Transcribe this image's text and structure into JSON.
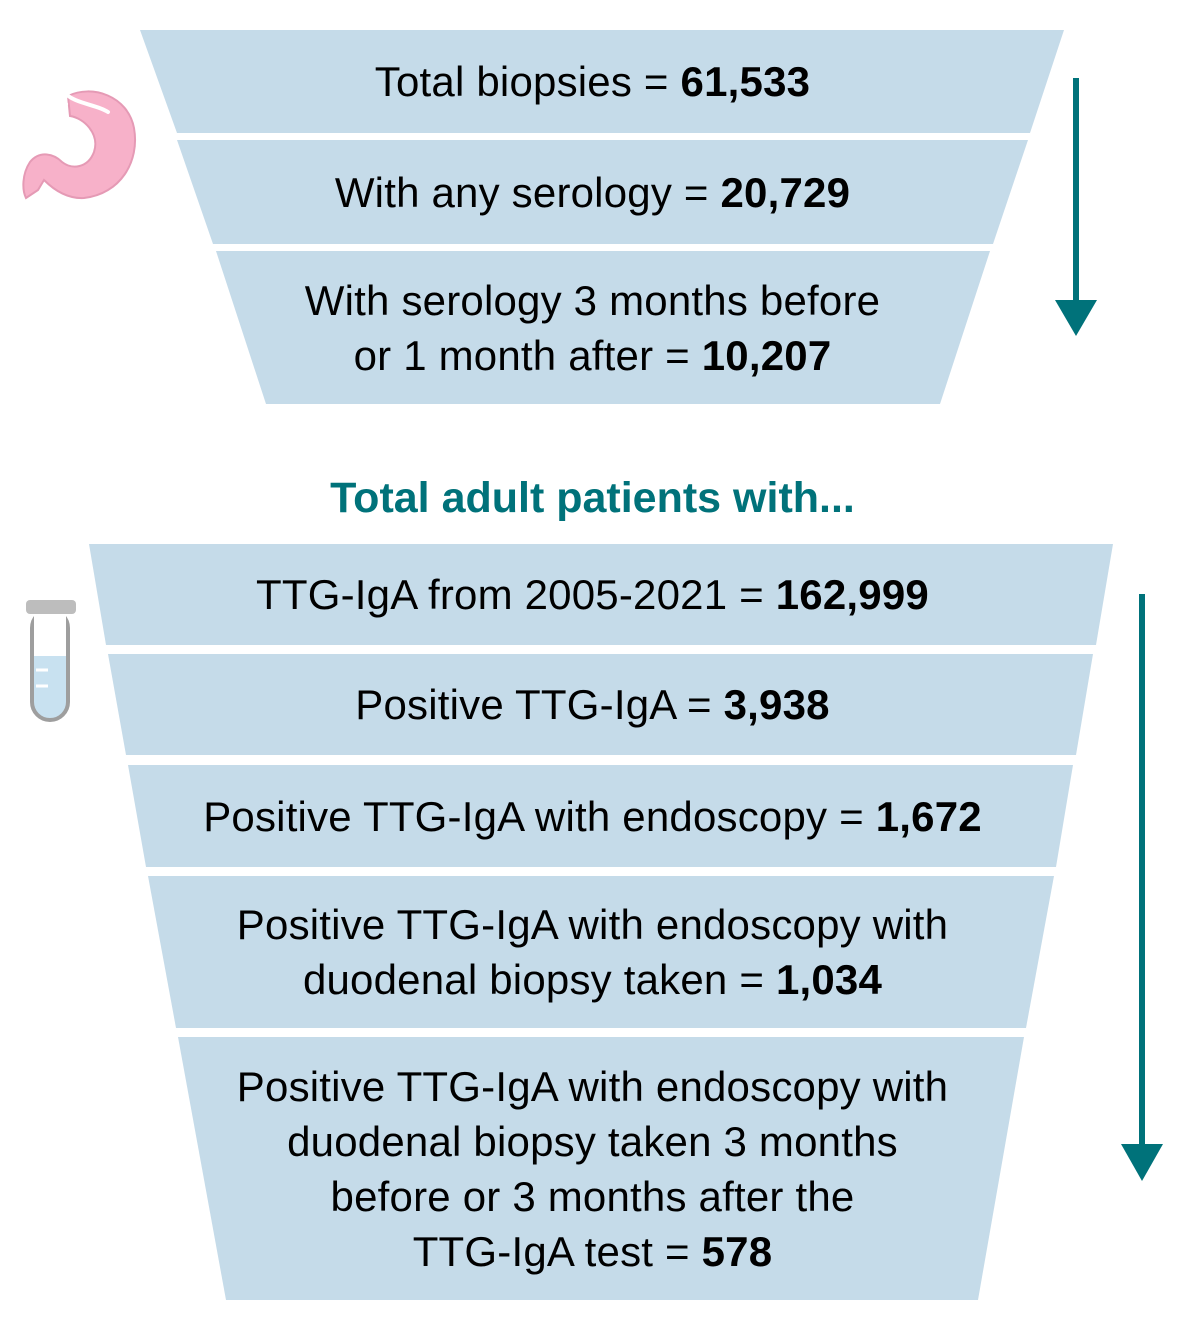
{
  "colors": {
    "band_fill": "#c5dbe9",
    "accent": "#00727a",
    "stomach": "#f7b1c9",
    "tube_body": "#c8e1f0",
    "tube_cap": "#bdbdbd"
  },
  "icons": {
    "top": "stomach-icon",
    "bottom": "test-tube-icon",
    "arrow": "arrow-down-icon"
  },
  "funnel_top": {
    "levels": [
      {
        "lines": [
          {
            "text": "Total biopsies = ",
            "value": "61,533"
          }
        ]
      },
      {
        "lines": [
          {
            "text": "With any serology = ",
            "value": "20,729"
          }
        ]
      },
      {
        "lines": [
          {
            "text": "With serology 3 months before",
            "value": ""
          },
          {
            "text": "or 1 month after = ",
            "value": "10,207"
          }
        ]
      }
    ]
  },
  "heading": "Total adult patients with...",
  "funnel_bottom": {
    "levels": [
      {
        "lines": [
          {
            "text": "TTG-IgA from 2005-2021 = ",
            "value": "162,999"
          }
        ]
      },
      {
        "lines": [
          {
            "text": "Positive TTG-IgA = ",
            "value": "3,938"
          }
        ]
      },
      {
        "lines": [
          {
            "text": "Positive TTG-IgA with endoscopy = ",
            "value": "1,672"
          }
        ]
      },
      {
        "lines": [
          {
            "text": "Positive TTG-IgA with endoscopy with",
            "value": ""
          },
          {
            "text": "duodenal biopsy taken = ",
            "value": "1,034"
          }
        ]
      },
      {
        "lines": [
          {
            "text": "Positive TTG-IgA with endoscopy with",
            "value": ""
          },
          {
            "text": "duodenal biopsy taken 3 months",
            "value": ""
          },
          {
            "text": "before or 3 months after the",
            "value": ""
          },
          {
            "text": "TTG-IgA test = ",
            "value": "578"
          }
        ]
      }
    ]
  }
}
